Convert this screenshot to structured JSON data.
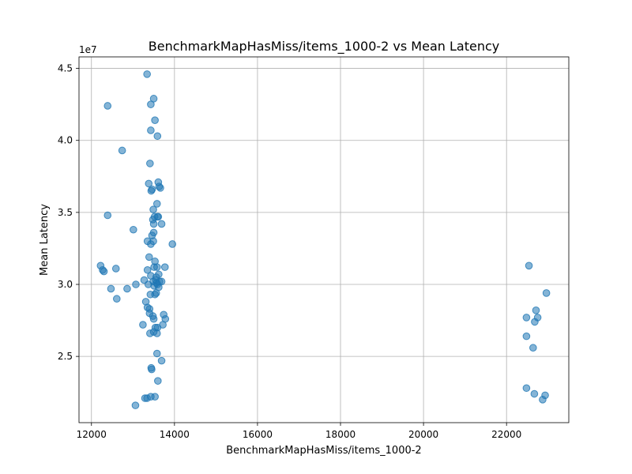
{
  "chart_data": {
    "type": "scatter",
    "title": "BenchmarkMapHasMiss/items_1000-2 vs Mean Latency",
    "xlabel": "BenchmarkMapHasMiss/items_1000-2",
    "ylabel": "Mean Latency",
    "y_offset_label": "1e7",
    "xlim": [
      11700,
      23500
    ],
    "ylim": [
      20400000,
      45800000
    ],
    "xticks": [
      12000,
      14000,
      16000,
      18000,
      20000,
      22000
    ],
    "xtick_labels": [
      "12000",
      "14000",
      "16000",
      "18000",
      "20000",
      "22000"
    ],
    "yticks": [
      25000000,
      30000000,
      35000000,
      40000000,
      45000000
    ],
    "ytick_labels": [
      "2.5",
      "3.0",
      "3.5",
      "4.0",
      "4.5"
    ],
    "grid": true,
    "color": "#1f77b4",
    "alpha": 0.55,
    "points": [
      [
        13340,
        44600000
      ],
      [
        13500,
        42900000
      ],
      [
        12390,
        42400000
      ],
      [
        13430,
        42500000
      ],
      [
        13530,
        41400000
      ],
      [
        13430,
        40700000
      ],
      [
        13590,
        40300000
      ],
      [
        12740,
        39300000
      ],
      [
        13410,
        38400000
      ],
      [
        13380,
        37000000
      ],
      [
        13610,
        37100000
      ],
      [
        13630,
        36800000
      ],
      [
        13660,
        36700000
      ],
      [
        13460,
        36600000
      ],
      [
        13440,
        36500000
      ],
      [
        13580,
        35600000
      ],
      [
        13490,
        35200000
      ],
      [
        12390,
        34800000
      ],
      [
        13520,
        34700000
      ],
      [
        13590,
        34700000
      ],
      [
        13610,
        34700000
      ],
      [
        13480,
        34500000
      ],
      [
        13690,
        34200000
      ],
      [
        13500,
        34200000
      ],
      [
        13010,
        33800000
      ],
      [
        13500,
        33600000
      ],
      [
        13460,
        33400000
      ],
      [
        13350,
        33000000
      ],
      [
        13490,
        33000000
      ],
      [
        13950,
        32800000
      ],
      [
        13430,
        32800000
      ],
      [
        13390,
        31900000
      ],
      [
        13530,
        31600000
      ],
      [
        12220,
        31300000
      ],
      [
        13510,
        31200000
      ],
      [
        13580,
        31200000
      ],
      [
        13770,
        31200000
      ],
      [
        12590,
        31100000
      ],
      [
        13350,
        31000000
      ],
      [
        12270,
        31000000
      ],
      [
        12300,
        30900000
      ],
      [
        13620,
        30700000
      ],
      [
        13430,
        30600000
      ],
      [
        13560,
        30500000
      ],
      [
        13270,
        30300000
      ],
      [
        13550,
        30300000
      ],
      [
        13490,
        30200000
      ],
      [
        13570,
        30100000
      ],
      [
        13640,
        30200000
      ],
      [
        13690,
        30200000
      ],
      [
        13370,
        30000000
      ],
      [
        13070,
        30000000
      ],
      [
        13590,
        30000000
      ],
      [
        13510,
        29900000
      ],
      [
        13620,
        29800000
      ],
      [
        12860,
        29700000
      ],
      [
        12470,
        29700000
      ],
      [
        13420,
        29300000
      ],
      [
        13530,
        29300000
      ],
      [
        13560,
        29400000
      ],
      [
        12610,
        29000000
      ],
      [
        13310,
        28800000
      ],
      [
        13350,
        28400000
      ],
      [
        13400,
        28300000
      ],
      [
        13400,
        28000000
      ],
      [
        13740,
        27900000
      ],
      [
        13480,
        27800000
      ],
      [
        13500,
        27600000
      ],
      [
        13780,
        27600000
      ],
      [
        13240,
        27200000
      ],
      [
        13720,
        27200000
      ],
      [
        13590,
        27000000
      ],
      [
        13540,
        27000000
      ],
      [
        13500,
        26700000
      ],
      [
        13410,
        26600000
      ],
      [
        13580,
        26600000
      ],
      [
        13580,
        25200000
      ],
      [
        13690,
        24700000
      ],
      [
        13440,
        24200000
      ],
      [
        13450,
        24100000
      ],
      [
        13600,
        23300000
      ],
      [
        13290,
        22100000
      ],
      [
        13340,
        22100000
      ],
      [
        13430,
        22200000
      ],
      [
        13530,
        22200000
      ],
      [
        13060,
        21600000
      ],
      [
        22540,
        31300000
      ],
      [
        22960,
        29400000
      ],
      [
        22710,
        28200000
      ],
      [
        22750,
        27700000
      ],
      [
        22480,
        27700000
      ],
      [
        22680,
        27400000
      ],
      [
        22480,
        26400000
      ],
      [
        22640,
        25600000
      ],
      [
        22480,
        22800000
      ],
      [
        22670,
        22400000
      ],
      [
        22930,
        22300000
      ],
      [
        22870,
        22000000
      ]
    ]
  }
}
